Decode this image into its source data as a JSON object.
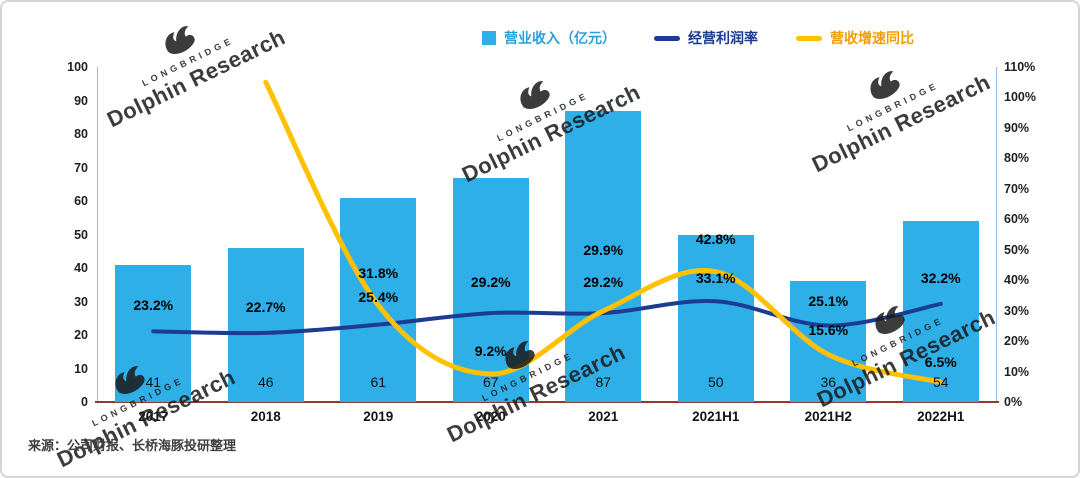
{
  "watermark": {
    "brand": "LONGBRIDGE",
    "name": "Dolphin Research"
  },
  "source_note": "来源：公司财报、长桥海豚投研整理",
  "legend": {
    "bar_label": "营业收入（亿元）",
    "margin_label": "经营利润率",
    "growth_label": "营收增速同比"
  },
  "chart_data": {
    "type": "combo",
    "categories": [
      "2017",
      "2018",
      "2019",
      "2020",
      "2021",
      "2021H1",
      "2021H2",
      "2022H1"
    ],
    "series": [
      {
        "id": "revenue-bars",
        "name": "营业收入（亿元）",
        "type": "bar",
        "axis": "left",
        "color": "#2FAFE8",
        "legend_text_color": "#2B9FDB",
        "values": [
          41,
          46,
          61,
          67,
          87,
          50,
          36,
          54
        ]
      },
      {
        "id": "margin-line",
        "name": "经营利润率",
        "type": "line",
        "axis": "right",
        "color": "#1B3C91",
        "legend_text_color": "#1B3C91",
        "values": [
          23.2,
          22.7,
          25.4,
          29.2,
          29.2,
          33.1,
          25.1,
          32.2
        ],
        "point_labels": [
          "23.2%",
          "22.7%",
          "25.4%",
          "29.2%",
          "29.2%",
          "33.1%",
          "25.1%",
          "32.2%"
        ]
      },
      {
        "id": "growth-line",
        "name": "营收增速同比",
        "type": "line",
        "axis": "right",
        "color": "#FFC100",
        "legend_text_color": "#F29D00",
        "values": [
          null,
          105,
          31.8,
          9.2,
          29.9,
          42.8,
          15.6,
          6.5
        ],
        "point_labels": [
          "",
          "",
          "31.8%",
          "9.2%",
          "29.9%",
          "42.8%",
          "15.6%",
          "6.5%"
        ]
      }
    ],
    "left_axis": {
      "min": 0,
      "max": 100,
      "ticks": [
        "100",
        "90",
        "80",
        "70",
        "60",
        "50",
        "40",
        "30",
        "20",
        "10",
        "0"
      ]
    },
    "right_axis": {
      "min": 0,
      "max": 110,
      "ticks": [
        "110%",
        "100%",
        "90%",
        "80%",
        "70%",
        "60%",
        "50%",
        "40%",
        "30%",
        "20%",
        "10%",
        "0%"
      ]
    },
    "grid": false,
    "legend_position": "top"
  }
}
